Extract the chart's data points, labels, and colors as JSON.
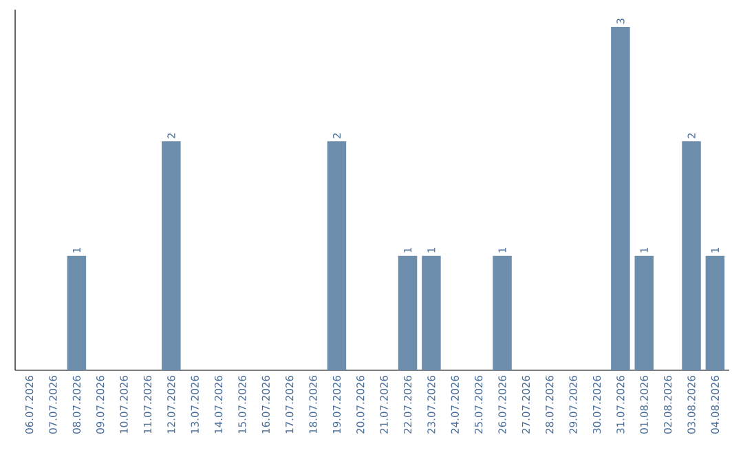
{
  "chart_data": {
    "type": "bar",
    "categories": [
      "06.07.2026",
      "07.07.2026",
      "08.07.2026",
      "09.07.2026",
      "10.07.2026",
      "11.07.2026",
      "12.07.2026",
      "13.07.2026",
      "14.07.2026",
      "15.07.2026",
      "16.07.2026",
      "17.07.2026",
      "18.07.2026",
      "19.07.2026",
      "20.07.2026",
      "21.07.2026",
      "22.07.2026",
      "23.07.2026",
      "24.07.2026",
      "25.07.2026",
      "26.07.2026",
      "27.07.2026",
      "28.07.2026",
      "29.07.2026",
      "30.07.2026",
      "31.07.2026",
      "01.08.2026",
      "02.08.2026",
      "03.08.2026",
      "04.08.2026"
    ],
    "values": [
      0,
      0,
      1,
      0,
      0,
      0,
      2,
      0,
      0,
      0,
      0,
      0,
      0,
      2,
      0,
      0,
      1,
      1,
      0,
      0,
      1,
      0,
      0,
      0,
      0,
      3,
      1,
      0,
      2,
      1
    ],
    "value_labels": [
      null,
      null,
      "1",
      null,
      null,
      null,
      "2",
      null,
      null,
      null,
      null,
      null,
      null,
      "2",
      null,
      null,
      "1",
      "1",
      null,
      null,
      "1",
      null,
      null,
      null,
      null,
      "3",
      "1",
      null,
      "2",
      "1"
    ],
    "color": "#6d8dac",
    "ylim": [
      0,
      3.15
    ],
    "tick_labels": "x"
  }
}
